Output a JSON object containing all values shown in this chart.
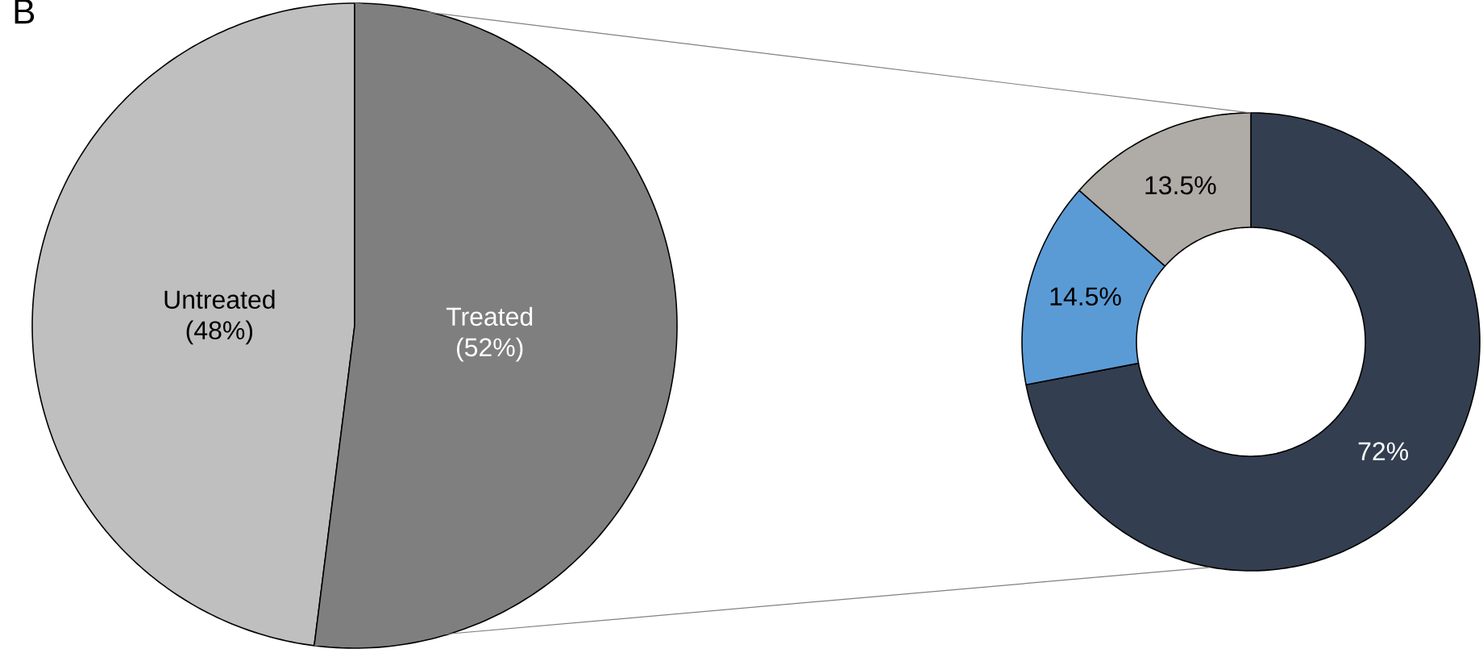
{
  "chart_data": [
    {
      "type": "pie",
      "title": "B",
      "categories": [
        "Untreated",
        "Treated"
      ],
      "values": [
        48,
        52
      ],
      "colors": [
        "#bfbfbf",
        "#7f7f7f"
      ],
      "value_labels": [
        "(48%)",
        "(52%)"
      ]
    },
    {
      "type": "donut",
      "categories": [
        null,
        null,
        null
      ],
      "values": [
        72,
        14.5,
        13.5
      ],
      "colors": [
        "#333f50",
        "#5b9bd5",
        "#afaba7"
      ],
      "value_labels": [
        "72%",
        "14.5%",
        "13.5%"
      ]
    }
  ]
}
